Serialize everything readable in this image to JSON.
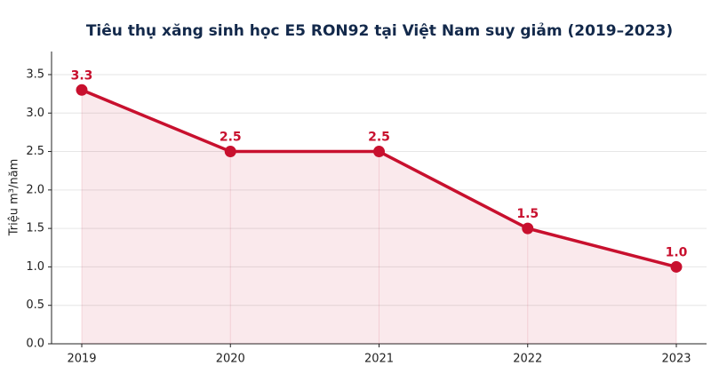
{
  "chart_data": {
    "type": "line",
    "title": "Tiêu thụ xăng sinh học E5 RON92 tại Việt Nam suy giảm (2019–2023)",
    "y_label": "Triệu m³/năm",
    "categories": [
      "2019",
      "2020",
      "2021",
      "2022",
      "2023"
    ],
    "series": [
      {
        "name": "E5 RON92",
        "color": "#c8102e",
        "values": [
          3.3,
          2.5,
          2.5,
          1.5,
          1.0
        ],
        "value_labels": [
          "3.3",
          "2.5",
          "2.5",
          "1.5",
          "1.0"
        ]
      }
    ],
    "area_fill": true,
    "ylim": [
      0,
      3.8
    ],
    "yticks": [
      {
        "value": 0,
        "label": "0.0"
      },
      0.5,
      {
        "value": 1,
        "label": "1.0"
      },
      1.5,
      {
        "value": 2,
        "label": "2.0"
      },
      2.5,
      {
        "value": 3,
        "label": "3.0"
      },
      3.5
    ],
    "grid": true
  }
}
